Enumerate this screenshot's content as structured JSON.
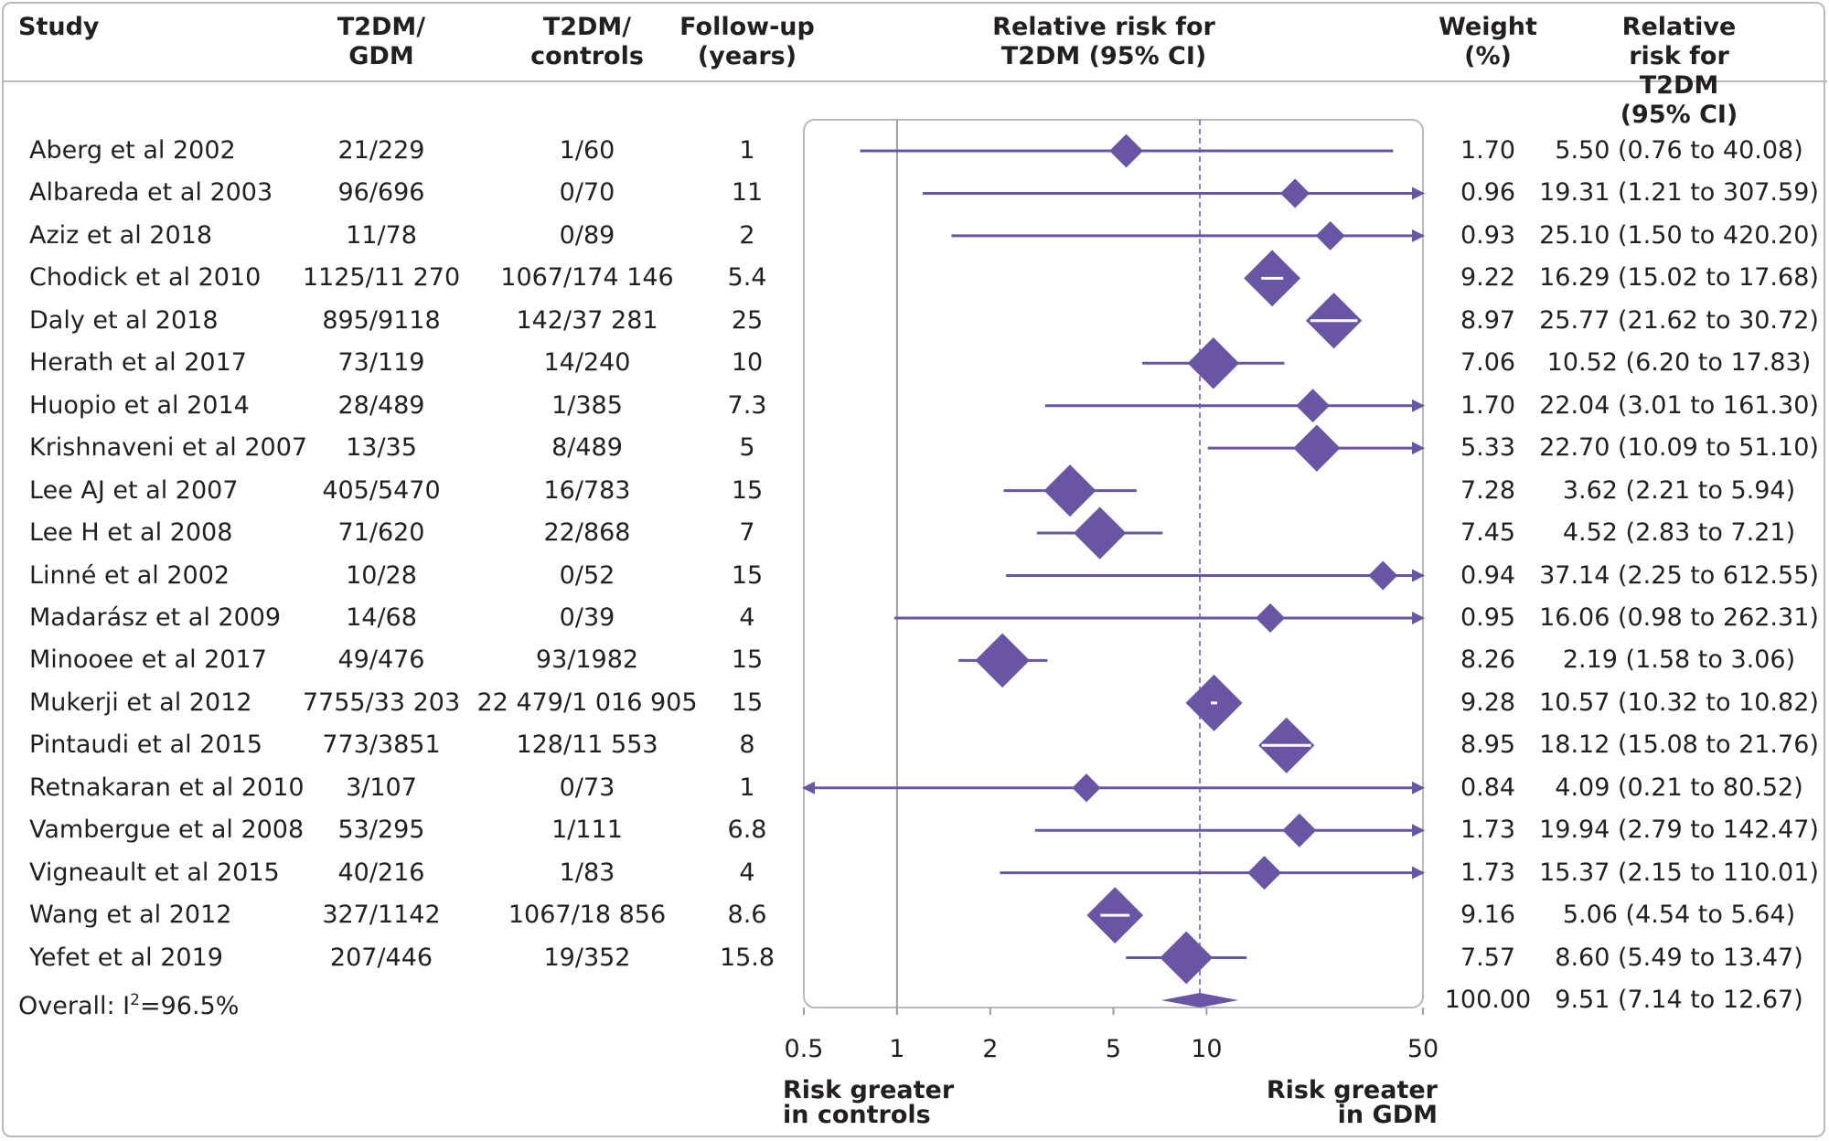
{
  "headers": {
    "study": "Study",
    "gdm_line1": "T2DM/",
    "gdm_line2": "GDM",
    "ctl_line1": "T2DM/",
    "ctl_line2": "controls",
    "fu_line1": "Follow-up",
    "fu_line2": "(years)",
    "rr_line1": "Relative risk for",
    "rr_line2": "T2DM (95% CI)",
    "w_line1": "Weight",
    "w_line2": "(%)",
    "rr2_line1": "Relative risk for",
    "rr2_line2": "T2DM (95% CI)"
  },
  "rows": [
    {
      "study": "Aberg et al  2002",
      "gdm": "21/229",
      "controls": "1/60",
      "followup": "1",
      "weight": "1.70",
      "ci_text": "5.50 (0.76 to 40.08)"
    },
    {
      "study": "Albareda et al  2003",
      "gdm": "96/696",
      "controls": "0/70",
      "followup": "11",
      "weight": "0.96",
      "ci_text": "19.31 (1.21 to 307.59)"
    },
    {
      "study": "Aziz et al  2018",
      "gdm": "11/78",
      "controls": "0/89",
      "followup": "2",
      "weight": "0.93",
      "ci_text": "25.10 (1.50 to 420.20)"
    },
    {
      "study": "Chodick et al  2010",
      "gdm": "1125/11 270",
      "controls": "1067/174 146",
      "followup": "5.4",
      "weight": "9.22",
      "ci_text": "16.29 (15.02 to 17.68)"
    },
    {
      "study": "Daly et al  2018",
      "gdm": "895/9118",
      "controls": "142/37 281",
      "followup": "25",
      "weight": "8.97",
      "ci_text": "25.77 (21.62 to 30.72)"
    },
    {
      "study": "Herath et al  2017",
      "gdm": "73/119",
      "controls": "14/240",
      "followup": "10",
      "weight": "7.06",
      "ci_text": "10.52 (6.20 to 17.83)"
    },
    {
      "study": "Huopio et al  2014",
      "gdm": "28/489",
      "controls": "1/385",
      "followup": "7.3",
      "weight": "1.70",
      "ci_text": "22.04 (3.01 to 161.30)"
    },
    {
      "study": "Krishnaveni et al  2007",
      "gdm": "13/35",
      "controls": "8/489",
      "followup": "5",
      "weight": "5.33",
      "ci_text": "22.70 (10.09 to 51.10)"
    },
    {
      "study": "Lee AJ et al  2007",
      "gdm": "405/5470",
      "controls": "16/783",
      "followup": "15",
      "weight": "7.28",
      "ci_text": "3.62 (2.21 to 5.94)"
    },
    {
      "study": "Lee H et al  2008",
      "gdm": "71/620",
      "controls": "22/868",
      "followup": "7",
      "weight": "7.45",
      "ci_text": "4.52 (2.83 to 7.21)"
    },
    {
      "study": "Linné et al  2002",
      "gdm": "10/28",
      "controls": "0/52",
      "followup": "15",
      "weight": "0.94",
      "ci_text": "37.14 (2.25 to 612.55)"
    },
    {
      "study": "Madarász et al  2009",
      "gdm": "14/68",
      "controls": "0/39",
      "followup": "4",
      "weight": "0.95",
      "ci_text": "16.06 (0.98 to 262.31)"
    },
    {
      "study": "Minooee et al  2017",
      "gdm": "49/476",
      "controls": "93/1982",
      "followup": "15",
      "weight": "8.26",
      "ci_text": "2.19 (1.58 to 3.06)"
    },
    {
      "study": "Mukerji et al  2012",
      "gdm": "7755/33 203",
      "controls": "22 479/1 016 905",
      "followup": "15",
      "weight": "9.28",
      "ci_text": "10.57 (10.32 to 10.82)"
    },
    {
      "study": "Pintaudi et al  2015",
      "gdm": "773/3851",
      "controls": "128/11 553",
      "followup": "8",
      "weight": "8.95",
      "ci_text": "18.12 (15.08 to 21.76)"
    },
    {
      "study": "Retnakaran et al  2010",
      "gdm": "3/107",
      "controls": "0/73",
      "followup": "1",
      "weight": "0.84",
      "ci_text": "4.09 (0.21 to 80.52)"
    },
    {
      "study": "Vambergue et al  2008",
      "gdm": "53/295",
      "controls": "1/111",
      "followup": "6.8",
      "weight": "1.73",
      "ci_text": "19.94 (2.79 to 142.47)"
    },
    {
      "study": "Vigneault et al  2015",
      "gdm": "40/216",
      "controls": "1/83",
      "followup": "4",
      "weight": "1.73",
      "ci_text": "15.37 (2.15 to 110.01)"
    },
    {
      "study": "Wang et al  2012",
      "gdm": "327/1142",
      "controls": "1067/18 856",
      "followup": "8.6",
      "weight": "9.16",
      "ci_text": "5.06 (4.54 to 5.64)"
    },
    {
      "study": "Yefet et al 2019",
      "gdm": "207/446",
      "controls": "19/352",
      "followup": "15.8",
      "weight": "7.57",
      "ci_text": "8.60 (5.49 to 13.47)"
    }
  ],
  "overall": {
    "label_prefix": "Overall: I",
    "label_sup": "2",
    "label_suffix": "=96.5%",
    "weight": "100.00",
    "ci_text": "9.51 (7.14 to 12.67)"
  },
  "footer": {
    "left_line1": "Risk greater",
    "left_line2": "in controls",
    "right_line1": "Risk greater",
    "right_line2": "in GDM"
  },
  "chart_data": {
    "type": "forest",
    "scale": "log",
    "xlim": [
      0.5,
      50
    ],
    "ticks": [
      0.5,
      1,
      2,
      5,
      10,
      50
    ],
    "tick_labels": [
      "0.5",
      "1",
      "2",
      "5",
      "10",
      "50"
    ],
    "null_line": 1,
    "pooled_line": 9.51,
    "colors": {
      "marker": "#6a55a5",
      "axis": "#9b9da1",
      "box_border": "#b7b9bd"
    },
    "estimates": [
      {
        "est": 5.5,
        "lo": 0.76,
        "hi": 40.08,
        "weight": 1.7
      },
      {
        "est": 19.31,
        "lo": 1.21,
        "hi": 307.59,
        "weight": 0.96
      },
      {
        "est": 25.1,
        "lo": 1.5,
        "hi": 420.2,
        "weight": 0.93
      },
      {
        "est": 16.29,
        "lo": 15.02,
        "hi": 17.68,
        "weight": 9.22
      },
      {
        "est": 25.77,
        "lo": 21.62,
        "hi": 30.72,
        "weight": 8.97
      },
      {
        "est": 10.52,
        "lo": 6.2,
        "hi": 17.83,
        "weight": 7.06
      },
      {
        "est": 22.04,
        "lo": 3.01,
        "hi": 161.3,
        "weight": 1.7
      },
      {
        "est": 22.7,
        "lo": 10.09,
        "hi": 51.1,
        "weight": 5.33
      },
      {
        "est": 3.62,
        "lo": 2.21,
        "hi": 5.94,
        "weight": 7.28
      },
      {
        "est": 4.52,
        "lo": 2.83,
        "hi": 7.21,
        "weight": 7.45
      },
      {
        "est": 37.14,
        "lo": 2.25,
        "hi": 612.55,
        "weight": 0.94
      },
      {
        "est": 16.06,
        "lo": 0.98,
        "hi": 262.31,
        "weight": 0.95
      },
      {
        "est": 2.19,
        "lo": 1.58,
        "hi": 3.06,
        "weight": 8.26
      },
      {
        "est": 10.57,
        "lo": 10.32,
        "hi": 10.82,
        "weight": 9.28
      },
      {
        "est": 18.12,
        "lo": 15.08,
        "hi": 21.76,
        "weight": 8.95
      },
      {
        "est": 4.09,
        "lo": 0.21,
        "hi": 80.52,
        "weight": 0.84
      },
      {
        "est": 19.94,
        "lo": 2.79,
        "hi": 142.47,
        "weight": 1.73
      },
      {
        "est": 15.37,
        "lo": 2.15,
        "hi": 110.01,
        "weight": 1.73
      },
      {
        "est": 5.06,
        "lo": 4.54,
        "hi": 5.64,
        "weight": 9.16
      },
      {
        "est": 8.6,
        "lo": 5.49,
        "hi": 13.47,
        "weight": 7.57
      }
    ],
    "overall": {
      "est": 9.51,
      "lo": 7.14,
      "hi": 12.67,
      "weight": 100.0
    }
  }
}
